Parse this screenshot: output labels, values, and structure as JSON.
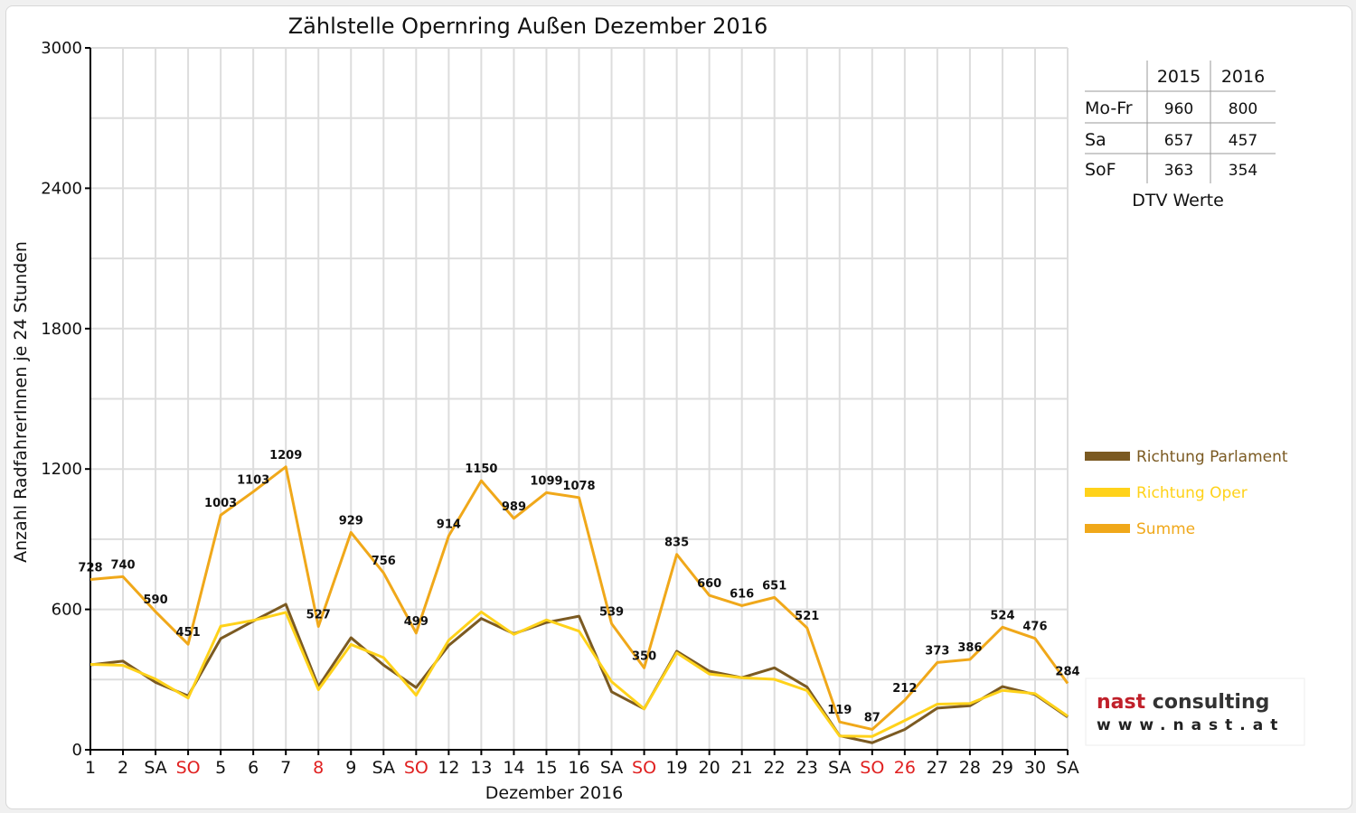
{
  "chart_data": {
    "type": "line",
    "title": "Zählstelle Opernring Außen Dezember 2016",
    "xlabel": "Dezember 2016",
    "ylabel": "Anzahl RadfahrerInnen je 24 Stunden",
    "ylim": [
      0,
      3000
    ],
    "yticks": [
      "0",
      "600",
      "1200",
      "1800",
      "2400",
      "3000"
    ],
    "grid": true,
    "legend_position": "right",
    "categories": [
      "1",
      "2",
      "SA",
      "SO",
      "5",
      "6",
      "7",
      "8",
      "9",
      "SA",
      "SO",
      "12",
      "13",
      "14",
      "15",
      "16",
      "SA",
      "SO",
      "19",
      "20",
      "21",
      "22",
      "23",
      "SA",
      "SO",
      "26",
      "27",
      "28",
      "29",
      "30",
      "SA"
    ],
    "holiday_indices": [
      3,
      7,
      10,
      17,
      24,
      25
    ],
    "series": [
      {
        "name": "Richtung Parlament",
        "color": "#7b5a22",
        "values": [
          363,
          379,
          288,
          230,
          475,
          550,
          622,
          270,
          479,
          362,
          266,
          446,
          561,
          496,
          544,
          571,
          248,
          175,
          421,
          336,
          308,
          350,
          268,
          60,
          30,
          87,
          178,
          188,
          270,
          236,
          140
        ]
      },
      {
        "name": "Richtung Oper",
        "color": "#ffd21a",
        "values": [
          365,
          361,
          302,
          221,
          528,
          553,
          587,
          257,
          450,
          394,
          233,
          468,
          589,
          493,
          555,
          507,
          291,
          175,
          414,
          324,
          308,
          301,
          253,
          59,
          57,
          125,
          195,
          198,
          254,
          240,
          144
        ]
      },
      {
        "name": "Summe",
        "color": "#f0a81a",
        "values": [
          728,
          740,
          590,
          451,
          1003,
          1103,
          1209,
          527,
          929,
          756,
          499,
          914,
          1150,
          989,
          1099,
          1078,
          539,
          350,
          835,
          660,
          616,
          651,
          521,
          119,
          87,
          212,
          373,
          386,
          524,
          476,
          284
        ]
      }
    ],
    "data_labels": [
      "728",
      "740",
      "590",
      "451",
      "1003",
      "1103",
      "1209",
      "527",
      "929",
      "756",
      "499",
      "914",
      "1150",
      "989",
      "1099",
      "1078",
      "539",
      "350",
      "835",
      "660",
      "616",
      "651",
      "521",
      "119",
      "87",
      "212",
      "373",
      "386",
      "524",
      "476",
      "284"
    ]
  },
  "dtv_table": {
    "caption": "DTV Werte",
    "headers": [
      "2015",
      "2016"
    ],
    "rows": [
      {
        "label": "Mo-Fr",
        "v2015": "960",
        "v2016": "800"
      },
      {
        "label": "Sa",
        "v2015": "657",
        "v2016": "457"
      },
      {
        "label": "SoF",
        "v2015": "363",
        "v2016": "354"
      }
    ]
  },
  "logo": {
    "name_part1": "nast",
    "name_part2": " consulting",
    "url": "www.nast.at"
  },
  "colors": {
    "holiday_red": "#e02020",
    "grid": "#dddddd",
    "logo_red": "#c0202a",
    "logo_dark": "#333333"
  }
}
